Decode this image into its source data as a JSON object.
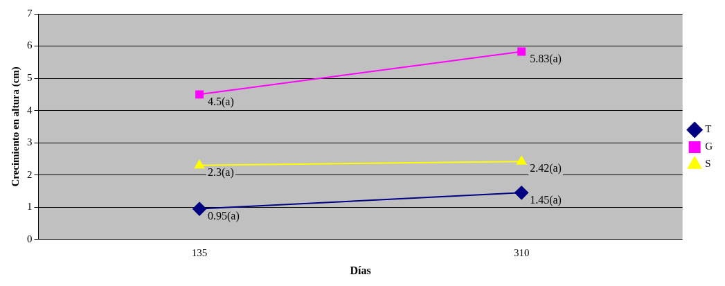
{
  "chart_data": {
    "type": "line",
    "xlabel": "Días",
    "ylabel": "Crecimiento en altura (cm)",
    "categories": [
      "135",
      "310"
    ],
    "series": [
      {
        "name": "T",
        "color": "#000080",
        "marker": "diamond",
        "values": [
          0.95,
          1.45
        ],
        "value_labels": [
          "0.95(a)",
          "1.45(a)"
        ]
      },
      {
        "name": "G",
        "color": "#ff00ff",
        "marker": "square",
        "values": [
          4.5,
          5.83
        ],
        "value_labels": [
          "4.5(a)",
          "5.83(a)"
        ]
      },
      {
        "name": "S",
        "color": "#ffff00",
        "marker": "triangle",
        "values": [
          2.3,
          2.42
        ],
        "value_labels": [
          "2.3(a)",
          "2.42(a)"
        ]
      }
    ],
    "ylim": [
      0,
      7
    ],
    "yticks": [
      0,
      1,
      2,
      3,
      4,
      5,
      6,
      7
    ],
    "grid": "y",
    "legend": "right"
  }
}
